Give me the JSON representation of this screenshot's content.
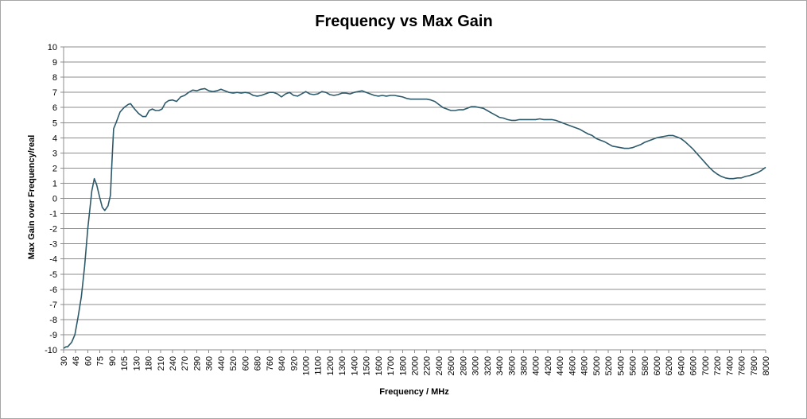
{
  "chart_data": {
    "type": "line",
    "title": "Frequency vs Max Gain",
    "xlabel": "Frequency / MHz",
    "ylabel": "Max Gain over Frequency/real",
    "ylim": [
      -10,
      10
    ],
    "y_ticks": [
      "10",
      "9",
      "8",
      "7",
      "6",
      "5",
      "4",
      "3",
      "2",
      "1",
      "0",
      "-1",
      "-2",
      "-3",
      "-4",
      "-5",
      "-6",
      "-7",
      "-8",
      "-9",
      "-10"
    ],
    "x_categories": [
      "30",
      "46",
      "60",
      "75",
      "90",
      "105",
      "130",
      "180",
      "210",
      "240",
      "270",
      "290",
      "360",
      "440",
      "520",
      "600",
      "680",
      "760",
      "840",
      "920",
      "1000",
      "1100",
      "1200",
      "1300",
      "1400",
      "1500",
      "1600",
      "1700",
      "1800",
      "2000",
      "2200",
      "2400",
      "2600",
      "2800",
      "3000",
      "3200",
      "3400",
      "3600",
      "3800",
      "4000",
      "4200",
      "4400",
      "4600",
      "4800",
      "5000",
      "5200",
      "5400",
      "5600",
      "5800",
      "6000",
      "6200",
      "6400",
      "6600",
      "7000",
      "7200",
      "7400",
      "7600",
      "7800",
      "8000"
    ],
    "grid": true,
    "legend": "none",
    "line_color": "#2d5a6b",
    "series": [
      {
        "points": [
          [
            0.0,
            -9.9
          ],
          [
            0.3,
            -9.8
          ],
          [
            0.5,
            -9.8
          ],
          [
            1.0,
            -9.5
          ],
          [
            1.4,
            -9.0
          ],
          [
            1.8,
            -7.8
          ],
          [
            2.2,
            -6.5
          ],
          [
            2.6,
            -4.5
          ],
          [
            3.0,
            -2.0
          ],
          [
            3.5,
            0.5
          ],
          [
            3.8,
            1.3
          ],
          [
            4.1,
            0.9
          ],
          [
            4.5,
            0.0
          ],
          [
            4.8,
            -0.6
          ],
          [
            5.1,
            -0.8
          ],
          [
            5.5,
            -0.5
          ],
          [
            5.8,
            0.2
          ],
          [
            6.0,
            2.5
          ],
          [
            6.2,
            4.6
          ],
          [
            6.5,
            5.0
          ],
          [
            7.0,
            5.7
          ],
          [
            7.5,
            6.0
          ],
          [
            8.0,
            6.2
          ],
          [
            8.3,
            6.25
          ],
          [
            8.8,
            5.9
          ],
          [
            9.3,
            5.6
          ],
          [
            9.8,
            5.4
          ],
          [
            10.2,
            5.4
          ],
          [
            10.6,
            5.8
          ],
          [
            11.0,
            5.9
          ],
          [
            11.4,
            5.8
          ],
          [
            11.8,
            5.8
          ],
          [
            12.2,
            5.9
          ],
          [
            12.6,
            6.3
          ],
          [
            13.0,
            6.45
          ],
          [
            13.5,
            6.5
          ],
          [
            14.0,
            6.4
          ],
          [
            14.5,
            6.7
          ],
          [
            15.0,
            6.8
          ],
          [
            15.5,
            7.0
          ],
          [
            16.0,
            7.15
          ],
          [
            16.5,
            7.1
          ],
          [
            17.0,
            7.2
          ],
          [
            17.5,
            7.25
          ],
          [
            18.0,
            7.1
          ],
          [
            18.5,
            7.05
          ],
          [
            19.0,
            7.1
          ],
          [
            19.5,
            7.2
          ],
          [
            20.0,
            7.1
          ],
          [
            20.5,
            7.0
          ],
          [
            21.0,
            6.95
          ],
          [
            21.5,
            7.0
          ],
          [
            22.0,
            6.95
          ],
          [
            22.5,
            7.0
          ],
          [
            23.0,
            6.95
          ],
          [
            23.5,
            6.8
          ],
          [
            24.0,
            6.75
          ],
          [
            24.5,
            6.8
          ],
          [
            25.0,
            6.9
          ],
          [
            25.5,
            7.0
          ],
          [
            26.0,
            7.0
          ],
          [
            26.5,
            6.9
          ],
          [
            27.0,
            6.7
          ],
          [
            27.5,
            6.9
          ],
          [
            28.0,
            7.0
          ],
          [
            28.5,
            6.8
          ],
          [
            29.0,
            6.75
          ],
          [
            29.5,
            6.9
          ],
          [
            30.0,
            7.05
          ],
          [
            30.5,
            6.9
          ],
          [
            31.0,
            6.85
          ],
          [
            31.5,
            6.9
          ],
          [
            32.0,
            7.05
          ],
          [
            32.5,
            7.0
          ],
          [
            33.0,
            6.85
          ],
          [
            33.5,
            6.8
          ],
          [
            34.0,
            6.85
          ],
          [
            34.5,
            6.95
          ],
          [
            35.0,
            6.95
          ],
          [
            35.5,
            6.9
          ],
          [
            36.0,
            7.0
          ],
          [
            36.5,
            7.05
          ],
          [
            37.0,
            7.1
          ],
          [
            37.5,
            7.0
          ],
          [
            38.0,
            6.9
          ],
          [
            38.5,
            6.8
          ],
          [
            39.0,
            6.75
          ],
          [
            39.5,
            6.8
          ],
          [
            40.0,
            6.75
          ],
          [
            40.5,
            6.8
          ],
          [
            41.0,
            6.8
          ],
          [
            41.5,
            6.75
          ],
          [
            42.0,
            6.7
          ],
          [
            42.5,
            6.6
          ],
          [
            43.0,
            6.55
          ],
          [
            43.5,
            6.55
          ],
          [
            44.0,
            6.55
          ],
          [
            44.5,
            6.55
          ],
          [
            45.0,
            6.55
          ],
          [
            45.5,
            6.5
          ],
          [
            46.0,
            6.4
          ],
          [
            46.5,
            6.2
          ],
          [
            47.0,
            6.0
          ],
          [
            47.5,
            5.9
          ],
          [
            48.0,
            5.8
          ],
          [
            48.5,
            5.8
          ],
          [
            49.0,
            5.85
          ],
          [
            49.5,
            5.85
          ],
          [
            50.0,
            5.95
          ],
          [
            50.5,
            6.05
          ],
          [
            51.0,
            6.05
          ],
          [
            51.5,
            6.0
          ],
          [
            52.0,
            5.95
          ],
          [
            52.5,
            5.8
          ],
          [
            53.0,
            5.65
          ],
          [
            53.5,
            5.5
          ],
          [
            54.0,
            5.35
          ],
          [
            54.5,
            5.3
          ],
          [
            55.0,
            5.2
          ],
          [
            55.5,
            5.15
          ],
          [
            56.0,
            5.15
          ],
          [
            56.5,
            5.2
          ],
          [
            57.0,
            5.2
          ],
          [
            57.5,
            5.2
          ],
          [
            58.0,
            5.2
          ],
          [
            58.5,
            5.2
          ],
          [
            59.0,
            5.25
          ],
          [
            59.5,
            5.2
          ],
          [
            60.0,
            5.2
          ],
          [
            60.5,
            5.2
          ],
          [
            61.0,
            5.15
          ],
          [
            61.5,
            5.05
          ],
          [
            62.0,
            4.95
          ],
          [
            62.5,
            4.85
          ],
          [
            63.0,
            4.75
          ],
          [
            63.5,
            4.65
          ],
          [
            64.0,
            4.55
          ],
          [
            64.5,
            4.4
          ],
          [
            65.0,
            4.25
          ],
          [
            65.5,
            4.15
          ],
          [
            66.0,
            3.95
          ],
          [
            66.5,
            3.85
          ],
          [
            67.0,
            3.75
          ],
          [
            67.5,
            3.6
          ],
          [
            68.0,
            3.45
          ],
          [
            68.5,
            3.4
          ],
          [
            69.0,
            3.35
          ],
          [
            69.5,
            3.3
          ],
          [
            70.0,
            3.3
          ],
          [
            70.5,
            3.35
          ],
          [
            71.0,
            3.45
          ],
          [
            71.5,
            3.55
          ],
          [
            72.0,
            3.7
          ],
          [
            72.5,
            3.8
          ],
          [
            73.0,
            3.9
          ],
          [
            73.5,
            4.0
          ],
          [
            74.0,
            4.05
          ],
          [
            74.5,
            4.1
          ],
          [
            75.0,
            4.15
          ],
          [
            75.5,
            4.15
          ],
          [
            76.0,
            4.05
          ],
          [
            76.5,
            3.95
          ],
          [
            77.0,
            3.75
          ],
          [
            77.5,
            3.5
          ],
          [
            78.0,
            3.25
          ],
          [
            78.5,
            2.95
          ],
          [
            79.0,
            2.65
          ],
          [
            79.5,
            2.35
          ],
          [
            80.0,
            2.05
          ],
          [
            80.5,
            1.8
          ],
          [
            81.0,
            1.6
          ],
          [
            81.5,
            1.45
          ],
          [
            82.0,
            1.35
          ],
          [
            82.5,
            1.3
          ],
          [
            83.0,
            1.3
          ],
          [
            83.5,
            1.35
          ],
          [
            84.0,
            1.35
          ],
          [
            84.5,
            1.45
          ],
          [
            85.0,
            1.5
          ],
          [
            85.5,
            1.6
          ],
          [
            86.0,
            1.7
          ],
          [
            86.5,
            1.85
          ],
          [
            87.0,
            2.05
          ]
        ]
      }
    ]
  }
}
